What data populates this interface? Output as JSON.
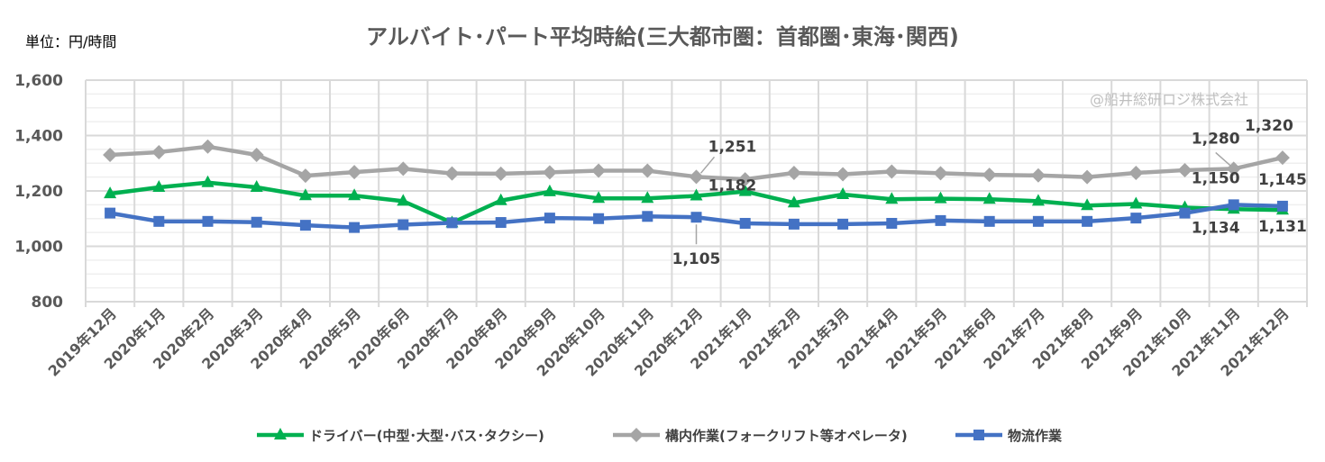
{
  "chart_data": {
    "type": "line",
    "title": "アルバイト･パート平均時給(三大都市圏：首都圏･東海･関西)",
    "unit_label": "単位：円/時間",
    "watermark": "@船井総研ロジ株式会社",
    "ylim": [
      800,
      1600
    ],
    "yticks": [
      "800",
      "1,000",
      "1,200",
      "1,400",
      "1,600"
    ],
    "ytick_values": [
      800,
      1000,
      1200,
      1400,
      1600
    ],
    "grid": true,
    "legend_position": "bottom",
    "categories": [
      "2019年12月",
      "2020年1月",
      "2020年2月",
      "2020年3月",
      "2020年4月",
      "2020年5月",
      "2020年6月",
      "2020年7月",
      "2020年8月",
      "2020年9月",
      "2020年10月",
      "2020年11月",
      "2020年12月",
      "2021年1月",
      "2021年2月",
      "2021年3月",
      "2021年4月",
      "2021年5月",
      "2021年6月",
      "2021年7月",
      "2021年8月",
      "2021年9月",
      "2021年10月",
      "2021年11月",
      "2021年12月"
    ],
    "series": [
      {
        "name": "ドライバー(中型･大型･バス･タクシー)",
        "color": "#00b050",
        "marker": "triangle",
        "values": [
          1190,
          1213,
          1230,
          1213,
          1183,
          1183,
          1163,
          1085,
          1165,
          1197,
          1173,
          1173,
          1182,
          1198,
          1157,
          1187,
          1170,
          1172,
          1170,
          1163,
          1147,
          1153,
          1140,
          1134,
          1131
        ]
      },
      {
        "name": "構内作業(フォークリフト等オペレータ)",
        "color": "#a5a5a5",
        "marker": "diamond",
        "values": [
          1330,
          1340,
          1360,
          1330,
          1255,
          1268,
          1280,
          1263,
          1262,
          1267,
          1273,
          1273,
          1251,
          1242,
          1265,
          1260,
          1270,
          1264,
          1258,
          1256,
          1250,
          1265,
          1275,
          1280,
          1320
        ]
      },
      {
        "name": "物流作業",
        "color": "#4472c4",
        "marker": "square",
        "values": [
          1120,
          1090,
          1090,
          1087,
          1076,
          1068,
          1078,
          1085,
          1086,
          1102,
          1100,
          1108,
          1105,
          1083,
          1080,
          1080,
          1083,
          1093,
          1090,
          1090,
          1090,
          1102,
          1120,
          1150,
          1145
        ]
      }
    ],
    "data_labels": [
      {
        "series": 1,
        "index": 12,
        "text": "1,251"
      },
      {
        "series": 0,
        "index": 12,
        "text": "1,182"
      },
      {
        "series": 2,
        "index": 12,
        "text": "1,105"
      },
      {
        "series": 1,
        "index": 23,
        "text": "1,280"
      },
      {
        "series": 1,
        "index": 24,
        "text": "1,320"
      },
      {
        "series": 2,
        "index": 23,
        "text": "1,150"
      },
      {
        "series": 2,
        "index": 24,
        "text": "1,145"
      },
      {
        "series": 0,
        "index": 23,
        "text": "1,134"
      },
      {
        "series": 0,
        "index": 24,
        "text": "1,131"
      }
    ]
  }
}
